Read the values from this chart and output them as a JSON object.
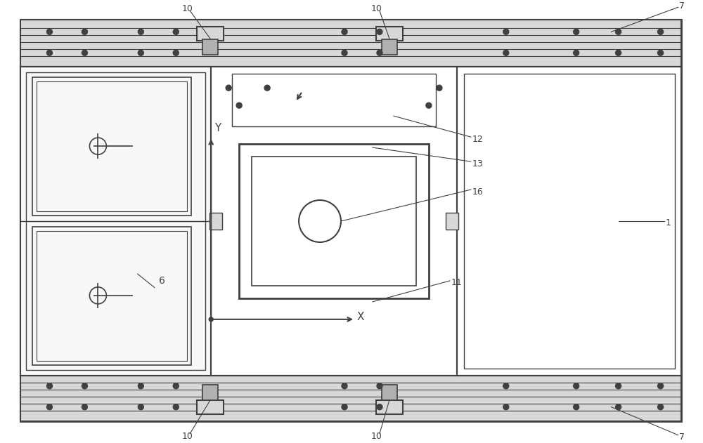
{
  "bg_color": "#ffffff",
  "dc": "#404040",
  "gray_fill": "#d8d8d8",
  "light_fill": "#f0f0f0",
  "fig_width": 10.0,
  "fig_height": 6.31
}
